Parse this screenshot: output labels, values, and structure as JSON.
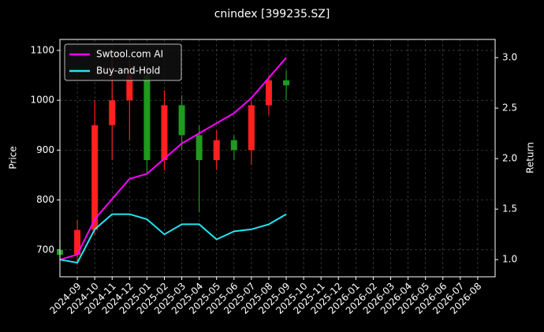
{
  "chart_data": {
    "type": "candlestick",
    "title": "cnindex [399235.SZ]",
    "ylabel": "Price",
    "y2label": "Return",
    "x": [
      "2024-08",
      "2024-09",
      "2024-10",
      "2024-11",
      "2024-12",
      "2025-01",
      "2025-02",
      "2025-03",
      "2025-04",
      "2025-05",
      "2025-06",
      "2025-07",
      "2025-08",
      "2025-09"
    ],
    "xlim": [
      "2024-08",
      "2026-09"
    ],
    "xticks": [
      "2024-09",
      "2024-10",
      "2024-11",
      "2024-12",
      "2025-01",
      "2025-02",
      "2025-03",
      "2025-04",
      "2025-05",
      "2025-06",
      "2025-07",
      "2025-08",
      "2025-09",
      "2025-10",
      "2025-11",
      "2025-12",
      "2026-01",
      "2026-02",
      "2026-03",
      "2026-04",
      "2026-05",
      "2026-06",
      "2026-07",
      "2026-08"
    ],
    "ylim": [
      646,
      1122
    ],
    "yticks": [
      700,
      800,
      900,
      1000,
      1100
    ],
    "y2lim": [
      0.83,
      3.18
    ],
    "y2ticks": [
      1.0,
      1.5,
      2.0,
      2.5,
      3.0
    ],
    "grid": true,
    "legend": "upper left",
    "up_color": "#ff2020",
    "down_color": "#1f9a1f",
    "candles": {
      "open": [
        700,
        690,
        740,
        950,
        1000,
        1050,
        880,
        990,
        930,
        880,
        920,
        900,
        990,
        1040
      ],
      "high": [
        720,
        760,
        1000,
        1090,
        1080,
        1070,
        1020,
        1010,
        950,
        940,
        930,
        1000,
        1050,
        1060
      ],
      "low": [
        680,
        670,
        730,
        880,
        920,
        850,
        860,
        900,
        775,
        860,
        880,
        870,
        970,
        1000
      ],
      "close": [
        690,
        740,
        950,
        1000,
        1050,
        880,
        990,
        930,
        880,
        920,
        900,
        990,
        1040,
        1030
      ]
    },
    "series": [
      {
        "name": "Swtool.com AI",
        "color": "#ff00ff",
        "axis": "y2",
        "values": [
          1.0,
          1.05,
          1.4,
          1.6,
          1.8,
          1.85,
          2.0,
          2.15,
          2.25,
          2.35,
          2.45,
          2.6,
          2.8,
          3.0
        ]
      },
      {
        "name": "Buy-and-Hold",
        "color": "#22e5f0",
        "axis": "y2",
        "values": [
          1.0,
          0.97,
          1.3,
          1.45,
          1.45,
          1.4,
          1.25,
          1.35,
          1.35,
          1.2,
          1.28,
          1.3,
          1.35,
          1.45
        ]
      }
    ]
  }
}
